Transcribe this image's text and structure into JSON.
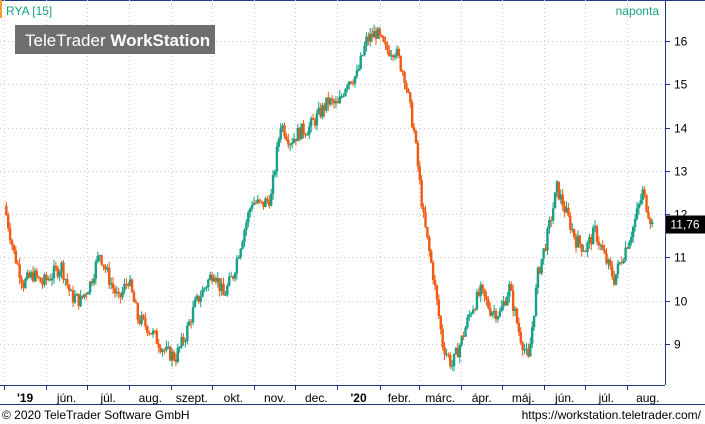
{
  "header": {
    "symbol_label": "RYA [15]",
    "watermark_plain": "TeleTrader ",
    "watermark_bold": "WorkStation",
    "interval_label": "naponta"
  },
  "footer": {
    "copyright": "© 2020 TeleTrader Software GmbH",
    "url": "https://workstation.teletrader.com/"
  },
  "colors": {
    "up": "#16a085",
    "down": "#f05a12",
    "axis": "#1f3a8a",
    "grid": "#cccccc",
    "label_accent": "#1aa37a",
    "watermark_bg": "#6f6f6f",
    "last_value_bg": "#000000"
  },
  "chart_data": {
    "type": "candlestick",
    "title": "RYA [15]",
    "interval": "naponta",
    "x_tick_labels": [
      "'19",
      "jún.",
      "júl.",
      "aug.",
      "szept.",
      "okt.",
      "nov.",
      "dec.",
      "'20",
      "febr.",
      "márc.",
      "ápr.",
      "máj.",
      "jún.",
      "júl.",
      "aug."
    ],
    "y_ticks": [
      9,
      10,
      11,
      12,
      13,
      14,
      15,
      16
    ],
    "ylim": [
      8.05,
      16.95
    ],
    "last_value": 11.76,
    "last_value_label": "11,76",
    "grid": "dotted",
    "series": [
      {
        "name": "RYA",
        "x": [
          "2019-05-02",
          "2019-05-09",
          "2019-05-16",
          "2019-05-23",
          "2019-05-30",
          "2019-06-06",
          "2019-06-13",
          "2019-06-20",
          "2019-06-27",
          "2019-07-04",
          "2019-07-11",
          "2019-07-18",
          "2019-07-25",
          "2019-08-01",
          "2019-08-08",
          "2019-08-15",
          "2019-08-22",
          "2019-08-29",
          "2019-09-05",
          "2019-09-12",
          "2019-09-19",
          "2019-09-26",
          "2019-10-03",
          "2019-10-10",
          "2019-10-17",
          "2019-10-24",
          "2019-10-31",
          "2019-11-07",
          "2019-11-14",
          "2019-11-21",
          "2019-11-28",
          "2019-12-05",
          "2019-12-12",
          "2019-12-19",
          "2019-12-26",
          "2020-01-02",
          "2020-01-09",
          "2020-01-16",
          "2020-01-23",
          "2020-01-30",
          "2020-02-06",
          "2020-02-13",
          "2020-02-20",
          "2020-02-27",
          "2020-03-05",
          "2020-03-12",
          "2020-03-19",
          "2020-03-26",
          "2020-04-02",
          "2020-04-09",
          "2020-04-16",
          "2020-04-23",
          "2020-04-30",
          "2020-05-07",
          "2020-05-14",
          "2020-05-21",
          "2020-05-28",
          "2020-06-04",
          "2020-06-11",
          "2020-06-18",
          "2020-06-25",
          "2020-07-02",
          "2020-07-09",
          "2020-07-16",
          "2020-07-23",
          "2020-07-30",
          "2020-08-06",
          "2020-08-13",
          "2020-08-20"
        ],
        "close": [
          12.2,
          11.1,
          10.4,
          10.6,
          10.4,
          10.6,
          10.8,
          10.1,
          10.0,
          10.4,
          11.1,
          10.5,
          10.0,
          10.5,
          9.6,
          9.4,
          9.1,
          8.8,
          8.7,
          9.2,
          9.9,
          10.3,
          10.7,
          10.1,
          10.6,
          11.5,
          12.3,
          12.2,
          12.4,
          14.1,
          13.7,
          13.9,
          14.0,
          14.3,
          14.6,
          14.5,
          15.1,
          15.2,
          16.0,
          16.2,
          15.8,
          15.8,
          15.2,
          13.9,
          11.9,
          10.6,
          9.0,
          8.5,
          9.1,
          9.8,
          10.2,
          9.8,
          9.7,
          10.3,
          9.3,
          8.6,
          10.6,
          11.5,
          12.6,
          12.0,
          11.4,
          11.2,
          11.6,
          11.0,
          10.5,
          11.1,
          11.7,
          12.5,
          11.76
        ]
      }
    ]
  }
}
